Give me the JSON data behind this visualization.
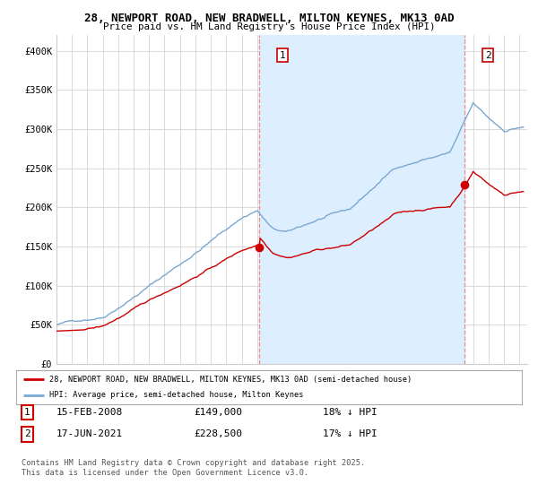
{
  "title_line1": "28, NEWPORT ROAD, NEW BRADWELL, MILTON KEYNES, MK13 0AD",
  "title_line2": "Price paid vs. HM Land Registry's House Price Index (HPI)",
  "ylabel_ticks": [
    "£0",
    "£50K",
    "£100K",
    "£150K",
    "£200K",
    "£250K",
    "£300K",
    "£350K",
    "£400K"
  ],
  "ylabel_values": [
    0,
    50000,
    100000,
    150000,
    200000,
    250000,
    300000,
    350000,
    400000
  ],
  "ylim": [
    0,
    420000
  ],
  "xlim_start": 1995.0,
  "xlim_end": 2025.5,
  "marker1_x": 2008.12,
  "marker1_y": 149000,
  "marker2_x": 2021.46,
  "marker2_y": 228500,
  "vline1_x": 2008.12,
  "vline2_x": 2021.46,
  "legend_line1": "28, NEWPORT ROAD, NEW BRADWELL, MILTON KEYNES, MK13 0AD (semi-detached house)",
  "legend_line2": "HPI: Average price, semi-detached house, Milton Keynes",
  "table_row1": [
    "1",
    "15-FEB-2008",
    "£149,000",
    "18% ↓ HPI"
  ],
  "table_row2": [
    "2",
    "17-JUN-2021",
    "£228,500",
    "17% ↓ HPI"
  ],
  "footer": "Contains HM Land Registry data © Crown copyright and database right 2025.\nThis data is licensed under the Open Government Licence v3.0.",
  "red_color": "#cc0000",
  "blue_color": "#7aa8d2",
  "shade_color": "#ddeeff",
  "vline_color": "#ee8888",
  "bg_color": "#ffffff",
  "grid_color": "#cccccc"
}
